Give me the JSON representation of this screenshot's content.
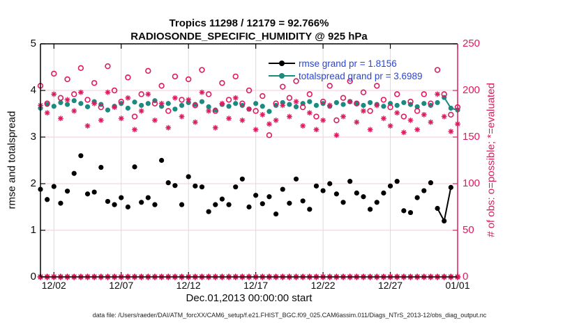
{
  "header": {
    "title_line1": "Tropics 11298 / 12179 = 92.766%",
    "title_line2": "RADIOSONDE_SPECIFIC_HUMIDITY @ 925 hPa"
  },
  "footer": {
    "data_file_note": "data file: /Users/raeder/DAI/ATM_forcXX/CAM6_setup/f.e21.FHIST_BGC.f09_025.CAM6assim.011/Diags_NTrS_2013-12/obs_diag_output.nc"
  },
  "colors": {
    "crimson": "#DE1A5F",
    "teal": "#1B8A80",
    "black": "#000000",
    "legend_text_blue": "#2846D8",
    "grid_vertical": "#DBDBDB",
    "grid_horizontal": "#F6CBD9"
  },
  "legend": [
    {
      "series": "rmse",
      "label": "rmse grand pr = 1.8156",
      "color": "#000000"
    },
    {
      "series": "totalspread",
      "label": "totalspread grand pr = 3.6989",
      "color": "#1B8A80"
    }
  ],
  "chart_data": {
    "type": "line",
    "title": "Tropics 11298 / 12179 = 92.766%",
    "subtitle": "RADIOSONDE_SPECIFIC_HUMIDITY @ 925 hPa",
    "left_axis": {
      "label": "rmse and totalspread",
      "ticks": [
        0,
        1,
        2,
        3,
        4,
        5
      ],
      "range": [
        0,
        5
      ]
    },
    "right_axis": {
      "label": "# of obs: o=possible; *=evaluated",
      "ticks": [
        0,
        50,
        100,
        150,
        200,
        250
      ],
      "range": [
        0,
        250
      ]
    },
    "x_axis": {
      "label": "Dec.01,2013 00:00:00 start",
      "tick_labels": [
        "12/02",
        "12/07",
        "12/12",
        "12/17",
        "12/22",
        "12/27",
        "01/01"
      ],
      "tick_days": [
        1,
        6,
        11,
        16,
        21,
        26,
        31
      ],
      "range_days": [
        0,
        31
      ]
    },
    "grid": true,
    "legend_position": "top-inside",
    "days": [
      0,
      0.5,
      1,
      1.5,
      2,
      2.5,
      3,
      3.5,
      4,
      4.5,
      5,
      5.5,
      6,
      6.5,
      7,
      7.5,
      8,
      8.5,
      9,
      9.5,
      10,
      10.5,
      11,
      11.5,
      12,
      12.5,
      13,
      13.5,
      14,
      14.5,
      15,
      15.5,
      16,
      16.5,
      17,
      17.5,
      18,
      18.5,
      19,
      19.5,
      20,
      20.5,
      21,
      21.5,
      22,
      22.5,
      23,
      23.5,
      24,
      24.5,
      25,
      25.5,
      26,
      26.5,
      27,
      27.5,
      28,
      28.5,
      29,
      29.5,
      30,
      30.5,
      31
    ],
    "series": [
      {
        "name": "rmse",
        "axis": "left",
        "marker": "filled-circle",
        "color": "#000000",
        "grand_value": 1.8156,
        "line_segment_indices": [
          59,
          61
        ],
        "values": [
          1.88,
          1.66,
          1.94,
          1.58,
          1.84,
          2.22,
          2.6,
          1.78,
          1.82,
          2.35,
          1.62,
          1.55,
          1.7,
          1.5,
          2.36,
          1.6,
          1.7,
          1.55,
          2.5,
          2.02,
          1.96,
          1.55,
          2.15,
          1.95,
          1.93,
          1.4,
          1.55,
          1.67,
          1.55,
          1.93,
          2.1,
          1.5,
          1.75,
          1.57,
          1.72,
          1.35,
          1.88,
          1.58,
          2.1,
          1.63,
          1.45,
          1.95,
          1.85,
          2.0,
          1.78,
          1.6,
          2.05,
          1.8,
          1.72,
          1.45,
          1.6,
          1.8,
          1.95,
          2.05,
          1.42,
          1.38,
          1.7,
          1.85,
          2.02,
          1.47,
          1.2,
          1.92,
          null
        ]
      },
      {
        "name": "totalspread",
        "axis": "left",
        "marker": "filled-circle",
        "color": "#1B8A80",
        "grand_value": 3.6989,
        "line_segment_indices": [
          60,
          62
        ],
        "values": [
          3.62,
          3.7,
          3.66,
          3.74,
          3.7,
          3.78,
          3.72,
          3.65,
          3.76,
          3.7,
          3.58,
          3.66,
          3.72,
          3.62,
          3.75,
          3.68,
          3.72,
          3.78,
          3.66,
          3.72,
          3.6,
          3.68,
          3.74,
          3.7,
          3.76,
          3.65,
          3.58,
          3.7,
          3.66,
          3.72,
          3.68,
          3.6,
          3.72,
          3.66,
          3.55,
          3.68,
          3.74,
          3.7,
          3.65,
          3.72,
          3.76,
          3.68,
          3.72,
          3.66,
          3.74,
          3.7,
          3.76,
          3.72,
          3.68,
          3.74,
          3.7,
          3.66,
          3.72,
          3.68,
          3.74,
          3.7,
          3.65,
          3.72,
          3.68,
          3.74,
          3.85,
          3.62,
          3.58
        ]
      },
      {
        "name": "possible",
        "axis": "right",
        "marker": "open-circle",
        "color": "#DE1A5F",
        "values": [
          205,
          186,
          218,
          192,
          212,
          196,
          224,
          190,
          208,
          182,
          226,
          200,
          188,
          214,
          172,
          196,
          221,
          186,
          205,
          178,
          215,
          190,
          212,
          184,
          222,
          196,
          178,
          208,
          190,
          215,
          186,
          200,
          178,
          194,
          152,
          186,
          204,
          192,
          210,
          182,
          196,
          172,
          188,
          205,
          168,
          192,
          210,
          186,
          198,
          178,
          205,
          190,
          182,
          196,
          172,
          188,
          178,
          196,
          186,
          222,
          196,
          174,
          182
        ]
      },
      {
        "name": "evaluated",
        "axis": "right",
        "marker": "asterisk",
        "color": "#DE1A5F",
        "values": [
          184,
          176,
          196,
          170,
          190,
          178,
          198,
          162,
          186,
          168,
          198,
          182,
          170,
          192,
          158,
          178,
          196,
          168,
          186,
          160,
          192,
          172,
          190,
          166,
          198,
          178,
          160,
          186,
          170,
          192,
          168,
          180,
          158,
          174,
          164,
          168,
          184,
          172,
          188,
          162,
          176,
          158,
          168,
          184,
          152,
          172,
          188,
          166,
          178,
          158,
          184,
          170,
          162,
          176,
          155,
          168,
          158,
          174,
          166,
          196,
          172,
          156,
          164
        ]
      },
      {
        "name": "zero-baseline",
        "axis": "right",
        "marker": "diamond-asterisk",
        "color": "#DE1A5F",
        "values": [
          0,
          0,
          0,
          0,
          0,
          0,
          0,
          0,
          0,
          0,
          0,
          0,
          0,
          0,
          0,
          0,
          0,
          0,
          0,
          0,
          0,
          0,
          0,
          0,
          0,
          0,
          0,
          0,
          0,
          0,
          0,
          0,
          0,
          0,
          0,
          0,
          0,
          0,
          0,
          0,
          0,
          0,
          0,
          0,
          0,
          0,
          0,
          0,
          0,
          0,
          0,
          0,
          0,
          0,
          0,
          0,
          0,
          0,
          0,
          0,
          0,
          0,
          0
        ]
      }
    ]
  }
}
